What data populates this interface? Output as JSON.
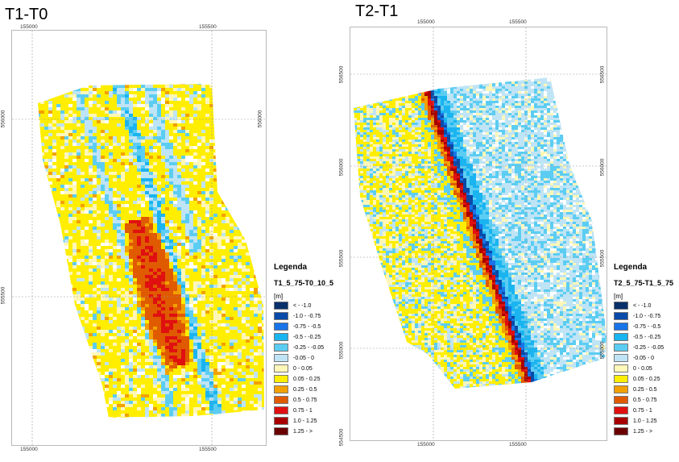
{
  "maps": [
    {
      "title": "T1-T0",
      "x_ticks": [
        "155000",
        "155500"
      ],
      "y_ticks": [
        "556000",
        "555500"
      ],
      "legend": {
        "title": "Legenda",
        "layer": "T1_5_75-T0_10_5",
        "unit": "[m]"
      }
    },
    {
      "title": "T2-T1",
      "x_ticks": [
        "155000",
        "155500"
      ],
      "y_ticks": [
        "556500",
        "556000",
        "555500",
        "555000",
        "554500"
      ],
      "legend": {
        "title": "Legenda",
        "layer": "T2_5_75-T1_5_75",
        "unit": "[m]"
      }
    }
  ],
  "legend_classes": [
    {
      "label": "< - -1.0",
      "color": "#08306b"
    },
    {
      "label": "-1.0 - -0.75",
      "color": "#0a4aa8"
    },
    {
      "label": "-0.75 - -0.5",
      "color": "#1874e8"
    },
    {
      "label": "-0.5 - -0.25",
      "color": "#1ab4f0"
    },
    {
      "label": "-0.25 - -0.05",
      "color": "#5ccdf2"
    },
    {
      "label": "-0.05 - 0",
      "color": "#bfe4f5"
    },
    {
      "label": "0 - 0.05",
      "color": "#fff7b8"
    },
    {
      "label": "0.05 - 0.25",
      "color": "#ffee00"
    },
    {
      "label": "0.25 - 0.5",
      "color": "#f2a100"
    },
    {
      "label": "0.5 - 0.75",
      "color": "#e05a00"
    },
    {
      "label": "0.75 - 1",
      "color": "#e01010"
    },
    {
      "label": "1.0 - 1.25",
      "color": "#a80000"
    },
    {
      "label": "1.25 - >",
      "color": "#6b0000"
    }
  ]
}
